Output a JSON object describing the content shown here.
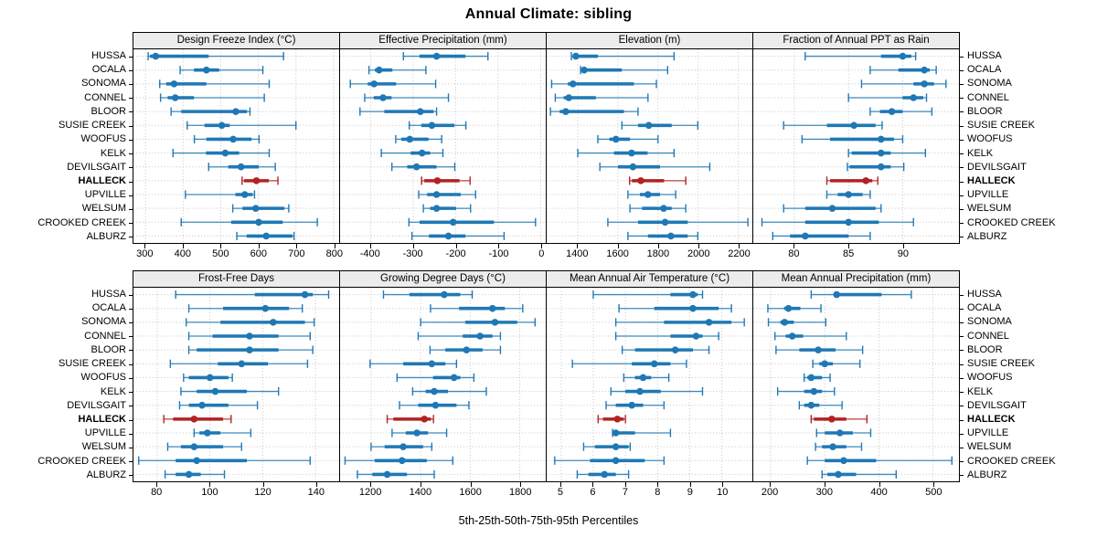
{
  "chart_data": {
    "type": "dotplot-percentiles",
    "title": "Annual Climate: sibling",
    "xlabel": "5th-25th-50th-75th-95th Percentiles",
    "percentiles": [
      5,
      25,
      50,
      75,
      95
    ],
    "legend": "none",
    "grid": "dotted",
    "stations": [
      "HUSSA",
      "OCALA",
      "SONOMA",
      "CONNEL",
      "BLOOR",
      "SUSIE CREEK",
      "WOOFUS",
      "KELK",
      "DEVILSGAIT",
      "HALLECK",
      "UPVILLE",
      "WELSUM",
      "CROOKED CREEK",
      "ALBURZ"
    ],
    "highlight_station": "HALLECK",
    "colors": {
      "series": "#1f78b4",
      "highlight": "#b22222",
      "grid": "#c4c4c4",
      "strip_bg": "#ececec",
      "border": "#000000"
    },
    "panels": [
      {
        "title": "Design Freeze Index (°C)",
        "xlim": [
          268,
          815
        ],
        "ticks": [
          300,
          400,
          500,
          600,
          700,
          800
        ],
        "values": [
          [
            307,
            312,
            327,
            468,
            667
          ],
          [
            392,
            429,
            462,
            496,
            612
          ],
          [
            338,
            355,
            376,
            462,
            629
          ],
          [
            340,
            359,
            379,
            429,
            616
          ],
          [
            368,
            395,
            540,
            570,
            578
          ],
          [
            411,
            457,
            503,
            524,
            700
          ],
          [
            430,
            462,
            533,
            582,
            602
          ],
          [
            373,
            461,
            512,
            549,
            629
          ],
          [
            468,
            520,
            554,
            601,
            645
          ],
          [
            557,
            562,
            595,
            628,
            652
          ],
          [
            406,
            539,
            564,
            585,
            590
          ],
          [
            532,
            558,
            593,
            669,
            681
          ],
          [
            395,
            528,
            601,
            665,
            757
          ],
          [
            543,
            569,
            621,
            691,
            695
          ]
        ]
      },
      {
        "title": "Effective Precipitation (mm)",
        "xlim": [
          -472,
          12
        ],
        "ticks": [
          -400,
          -300,
          -200,
          -100,
          0
        ],
        "values": [
          [
            -323,
            -285,
            -245,
            -177,
            -124
          ],
          [
            -404,
            -390,
            -380,
            -349,
            -270
          ],
          [
            -448,
            -407,
            -392,
            -340,
            -247
          ],
          [
            -414,
            -393,
            -371,
            -351,
            -217
          ],
          [
            -425,
            -368,
            -283,
            -252,
            -245
          ],
          [
            -309,
            -281,
            -256,
            -203,
            -176
          ],
          [
            -341,
            -328,
            -308,
            -264,
            -233
          ],
          [
            -375,
            -306,
            -279,
            -260,
            -230
          ],
          [
            -350,
            -314,
            -292,
            -245,
            -202
          ],
          [
            -280,
            -274,
            -243,
            -191,
            -166
          ],
          [
            -287,
            -267,
            -245,
            -188,
            -153
          ],
          [
            -276,
            -260,
            -245,
            -199,
            -165
          ],
          [
            -310,
            -285,
            -206,
            -110,
            -12
          ],
          [
            -303,
            -263,
            -217,
            -177,
            -86
          ]
        ]
      },
      {
        "title": "Elevation (m)",
        "xlim": [
          1245,
          2270
        ],
        "ticks": [
          1400,
          1600,
          1800,
          2000,
          2200
        ],
        "values": [
          [
            1368,
            1374,
            1390,
            1500,
            1880
          ],
          [
            1414,
            1420,
            1432,
            1620,
            1848
          ],
          [
            1270,
            1350,
            1376,
            1680,
            1792
          ],
          [
            1288,
            1330,
            1355,
            1490,
            1750
          ],
          [
            1264,
            1310,
            1340,
            1630,
            1700
          ],
          [
            1620,
            1700,
            1754,
            1868,
            1998
          ],
          [
            1500,
            1558,
            1590,
            1660,
            1800
          ],
          [
            1400,
            1580,
            1668,
            1748,
            1880
          ],
          [
            1510,
            1600,
            1675,
            1810,
            2058
          ],
          [
            1658,
            1670,
            1714,
            1830,
            1938
          ],
          [
            1650,
            1710,
            1750,
            1810,
            1888
          ],
          [
            1660,
            1720,
            1828,
            1868,
            1938
          ],
          [
            1550,
            1700,
            1835,
            1948,
            2248
          ],
          [
            1650,
            1750,
            1864,
            1948,
            1998
          ]
        ]
      },
      {
        "title": "Fraction of Annual PPT as Rain",
        "xlim": [
          76.2,
          95.2
        ],
        "ticks": [
          80,
          85,
          90
        ],
        "values": [
          [
            81,
            88,
            90,
            90.8,
            91.2
          ],
          [
            87,
            89.6,
            92,
            92.5,
            93.1
          ],
          [
            86.2,
            91,
            92,
            92.9,
            94
          ],
          [
            85,
            90,
            91,
            91.9,
            92.2
          ],
          [
            87,
            87.9,
            89,
            90,
            92.7
          ],
          [
            79,
            83,
            85.5,
            87.5,
            88.1
          ],
          [
            80.7,
            83.3,
            88,
            89.2,
            90
          ],
          [
            85,
            85.3,
            88,
            88.9,
            92.1
          ],
          [
            84.9,
            85.1,
            88,
            88.9,
            90.1
          ],
          [
            83,
            83.3,
            86.6,
            87.2,
            87.7
          ],
          [
            83,
            84,
            85,
            86.3,
            87
          ],
          [
            79,
            81,
            83.5,
            87.5,
            88
          ],
          [
            77,
            81,
            85,
            87.8,
            91
          ],
          [
            78,
            79.6,
            81,
            85,
            87
          ]
        ]
      },
      {
        "title": "Frost-Free Days",
        "xlim": [
          71,
          149
        ],
        "ticks": [
          80,
          100,
          120,
          140
        ],
        "values": [
          [
            87,
            117,
            136,
            139,
            145
          ],
          [
            92,
            105,
            121,
            130,
            135
          ],
          [
            91,
            104,
            124,
            136,
            139.5
          ],
          [
            92,
            101,
            115,
            126,
            138
          ],
          [
            92,
            95,
            115,
            126,
            139
          ],
          [
            85,
            103,
            112,
            122,
            137
          ],
          [
            90,
            92,
            100,
            107,
            108.5
          ],
          [
            89,
            95,
            102,
            114,
            126
          ],
          [
            88.5,
            92,
            97,
            107,
            118
          ],
          [
            82.5,
            86,
            94,
            105,
            108
          ],
          [
            94,
            96,
            99,
            104,
            115.5
          ],
          [
            84,
            89,
            94,
            105,
            112
          ],
          [
            73,
            87,
            95,
            114,
            138
          ],
          [
            83,
            87,
            92,
            96.5,
            105.5
          ]
        ]
      },
      {
        "title": "Growing Degree Days (°C)",
        "xlim": [
          1075,
          1905
        ],
        "ticks": [
          1200,
          1400,
          1600,
          1800
        ],
        "values": [
          [
            1250,
            1355,
            1495,
            1560,
            1608
          ],
          [
            1440,
            1555,
            1690,
            1740,
            1812
          ],
          [
            1400,
            1580,
            1700,
            1790,
            1862
          ],
          [
            1390,
            1570,
            1640,
            1690,
            1722
          ],
          [
            1438,
            1500,
            1585,
            1650,
            1722
          ],
          [
            1196,
            1330,
            1445,
            1500,
            1545
          ],
          [
            1305,
            1450,
            1535,
            1560,
            1615
          ],
          [
            1368,
            1420,
            1455,
            1510,
            1665
          ],
          [
            1315,
            1390,
            1460,
            1545,
            1595
          ],
          [
            1265,
            1290,
            1415,
            1442,
            1452
          ],
          [
            1285,
            1340,
            1385,
            1430,
            1505
          ],
          [
            1200,
            1255,
            1330,
            1410,
            1445
          ],
          [
            1095,
            1215,
            1325,
            1425,
            1530
          ],
          [
            1145,
            1205,
            1265,
            1345,
            1455
          ]
        ]
      },
      {
        "title": "Mean Annual Air Temperature (°C)",
        "xlim": [
          4.55,
          10.95
        ],
        "ticks": [
          5,
          6,
          7,
          8,
          9,
          10
        ],
        "values": [
          [
            6.0,
            8.4,
            9.1,
            9.25,
            9.4
          ],
          [
            6.8,
            7.9,
            9.1,
            9.9,
            10.3
          ],
          [
            6.7,
            8.2,
            9.6,
            10.3,
            10.7
          ],
          [
            6.7,
            8.4,
            9.2,
            9.4,
            9.9
          ],
          [
            6.9,
            7.3,
            8.55,
            9.1,
            9.6
          ],
          [
            5.35,
            7.2,
            7.9,
            8.4,
            8.9
          ],
          [
            6.95,
            7.3,
            7.55,
            7.8,
            8.35
          ],
          [
            6.55,
            7.0,
            7.45,
            8.1,
            9.4
          ],
          [
            6.4,
            6.7,
            7.2,
            7.55,
            8.2
          ],
          [
            6.15,
            6.3,
            6.75,
            6.95,
            7.0
          ],
          [
            6.6,
            6.62,
            6.7,
            7.3,
            8.4
          ],
          [
            5.7,
            6.05,
            6.7,
            7.1,
            7.15
          ],
          [
            4.8,
            5.9,
            6.7,
            7.6,
            8.2
          ],
          [
            5.5,
            5.85,
            6.35,
            6.7,
            7.1
          ]
        ]
      },
      {
        "title": "Mean Annual Precipitation (mm)",
        "xlim": [
          168,
          548
        ],
        "ticks": [
          200,
          300,
          400,
          500
        ],
        "values": [
          [
            275,
            318,
            322,
            405,
            460
          ],
          [
            195,
            225,
            233,
            255,
            293
          ],
          [
            196,
            218,
            226,
            243,
            302
          ],
          [
            208,
            228,
            240,
            260,
            340
          ],
          [
            210,
            253,
            288,
            320,
            370
          ],
          [
            278,
            290,
            300,
            315,
            365
          ],
          [
            262,
            268,
            275,
            295,
            310
          ],
          [
            213,
            262,
            280,
            295,
            318
          ],
          [
            253,
            262,
            275,
            290,
            332
          ],
          [
            275,
            280,
            313,
            340,
            378
          ],
          [
            285,
            300,
            328,
            352,
            385
          ],
          [
            283,
            295,
            315,
            340,
            368
          ],
          [
            268,
            300,
            335,
            395,
            535
          ],
          [
            295,
            305,
            325,
            358,
            432
          ]
        ]
      }
    ]
  }
}
